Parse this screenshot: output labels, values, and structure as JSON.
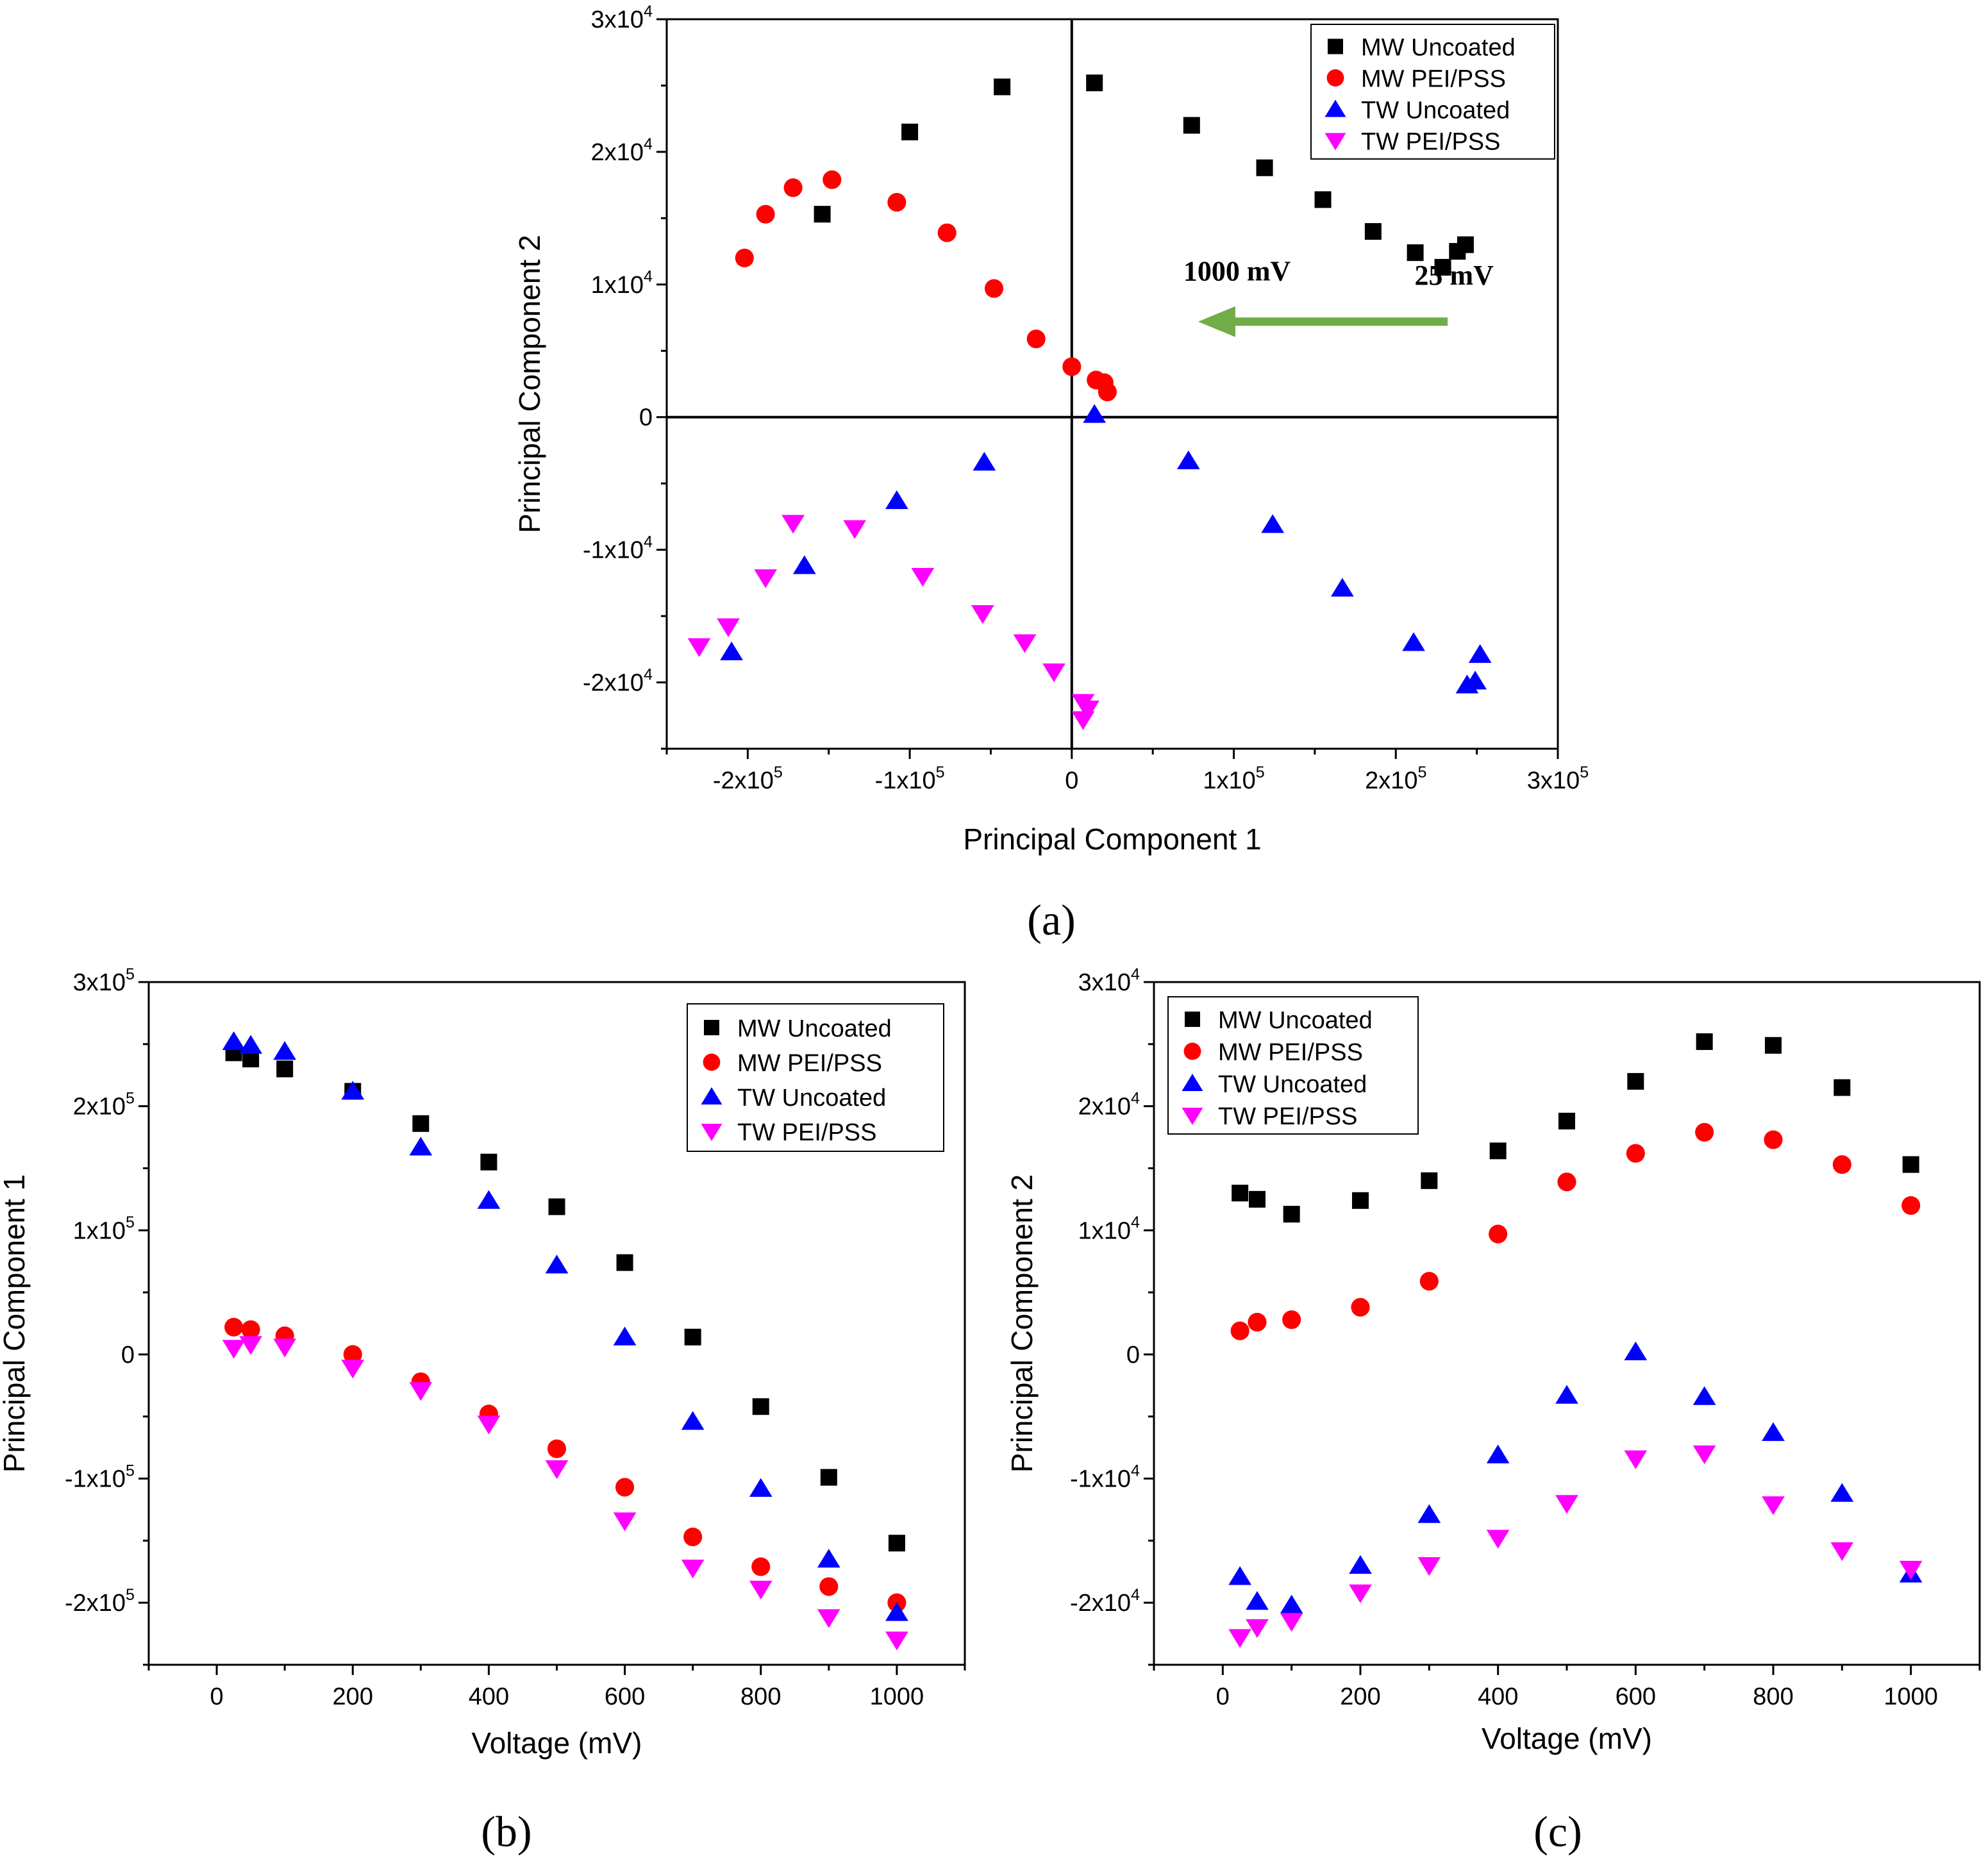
{
  "panel_labels": {
    "a": "(a)",
    "b": "(b)",
    "c": "(c)"
  },
  "legend_labels": [
    "MW Uncoated",
    "MW PEI/PSS",
    "TW Uncoated",
    "TW PEI/PSS"
  ],
  "series_colors": {
    "mw_uncoated": "#000000",
    "mw_peipss": "#ff0000",
    "tw_uncoated": "#0000ff",
    "tw_peipss": "#ff00ff"
  },
  "chart_data": [
    {
      "id": "a",
      "type": "scatter",
      "title": "",
      "xlabel": "Principal Component 1",
      "ylabel": "Principal Component 2",
      "xlim": [
        -250000,
        300000
      ],
      "ylim": [
        -25000,
        30000
      ],
      "xticks": [
        {
          "value": -200000,
          "mant": "-2x10",
          "exp": "5"
        },
        {
          "value": -100000,
          "mant": "-1x10",
          "exp": "5"
        },
        {
          "value": 0,
          "mant": "0",
          "exp": ""
        },
        {
          "value": 100000,
          "mant": "1x10",
          "exp": "5"
        },
        {
          "value": 200000,
          "mant": "2x10",
          "exp": "5"
        },
        {
          "value": 300000,
          "mant": "3x10",
          "exp": "5"
        }
      ],
      "yticks": [
        {
          "value": -20000,
          "mant": "-2x10",
          "exp": "4"
        },
        {
          "value": -10000,
          "mant": "-1x10",
          "exp": "4"
        },
        {
          "value": 0,
          "mant": "0",
          "exp": ""
        },
        {
          "value": 10000,
          "mant": "1x10",
          "exp": "4"
        },
        {
          "value": 20000,
          "mant": "2x10",
          "exp": "4"
        },
        {
          "value": 30000,
          "mant": "3x10",
          "exp": "4"
        }
      ],
      "annotations": [
        {
          "text": "1000 mV",
          "x": 102000,
          "y": 10300
        },
        {
          "text": "25 mV",
          "x": 236000,
          "y": 10000
        }
      ],
      "arrow": {
        "from": [
          232000,
          7200
        ],
        "to": [
          78000,
          7200
        ],
        "color": "#70ad47"
      },
      "series": [
        {
          "name": "MW Uncoated",
          "key": "mw_uncoated",
          "marker": "square",
          "points": [
            [
              243000,
              13000
            ],
            [
              238000,
              12500
            ],
            [
              229000,
              11300
            ],
            [
              212000,
              12400
            ],
            [
              186000,
              14000
            ],
            [
              155000,
              16400
            ],
            [
              119000,
              18800
            ],
            [
              74000,
              22000
            ],
            [
              14000,
              25200
            ],
            [
              -43000,
              24900
            ],
            [
              -100000,
              21500
            ],
            [
              -154000,
              15300
            ]
          ]
        },
        {
          "name": "MW PEI/PSS",
          "key": "mw_peipss",
          "marker": "circle",
          "points": [
            [
              22000,
              1900
            ],
            [
              20000,
              2600
            ],
            [
              15000,
              2800
            ],
            [
              0,
              3800
            ],
            [
              -22000,
              5900
            ],
            [
              -48000,
              9700
            ],
            [
              -77000,
              13900
            ],
            [
              -108000,
              16200
            ],
            [
              -148000,
              17900
            ],
            [
              -172000,
              17300
            ],
            [
              -189000,
              15300
            ],
            [
              -202000,
              12000
            ]
          ]
        },
        {
          "name": "TW Uncoated",
          "key": "tw_uncoated",
          "marker": "triangle-up",
          "points": [
            [
              252000,
              -17900
            ],
            [
              249000,
              -19900
            ],
            [
              244000,
              -20200
            ],
            [
              211000,
              -17000
            ],
            [
              167000,
              -12900
            ],
            [
              124000,
              -8100
            ],
            [
              72000,
              -3300
            ],
            [
              14000,
              200
            ],
            [
              -54000,
              -3400
            ],
            [
              -108000,
              -6300
            ],
            [
              -165000,
              -11200
            ],
            [
              -210000,
              -17700
            ]
          ]
        },
        {
          "name": "TW PEI/PSS",
          "key": "tw_peipss",
          "marker": "triangle-down",
          "points": [
            [
              7000,
              -22800
            ],
            [
              10000,
              -22000
            ],
            [
              7000,
              -21500
            ],
            [
              -11000,
              -19200
            ],
            [
              -29000,
              -17000
            ],
            [
              -55000,
              -14800
            ],
            [
              -92000,
              -12000
            ],
            [
              -134000,
              -8400
            ],
            [
              -172000,
              -8000
            ],
            [
              -189000,
              -12100
            ],
            [
              -212000,
              -15800
            ],
            [
              -230000,
              -17300
            ]
          ]
        }
      ]
    },
    {
      "id": "b",
      "type": "scatter",
      "title": "",
      "xlabel": "Voltage (mV)",
      "ylabel": "Principal Component 1",
      "xlim": [
        -100,
        1100
      ],
      "ylim": [
        -250000,
        300000
      ],
      "xticks": [
        {
          "value": 0,
          "mant": "0",
          "exp": ""
        },
        {
          "value": 200,
          "mant": "200",
          "exp": ""
        },
        {
          "value": 400,
          "mant": "400",
          "exp": ""
        },
        {
          "value": 600,
          "mant": "600",
          "exp": ""
        },
        {
          "value": 800,
          "mant": "800",
          "exp": ""
        },
        {
          "value": 1000,
          "mant": "1000",
          "exp": ""
        }
      ],
      "yticks": [
        {
          "value": -200000,
          "mant": "-2x10",
          "exp": "5"
        },
        {
          "value": -100000,
          "mant": "-1x10",
          "exp": "5"
        },
        {
          "value": 0,
          "mant": "0",
          "exp": ""
        },
        {
          "value": 100000,
          "mant": "1x10",
          "exp": "5"
        },
        {
          "value": 200000,
          "mant": "2x10",
          "exp": "5"
        },
        {
          "value": 300000,
          "mant": "3x10",
          "exp": "5"
        }
      ],
      "series": [
        {
          "name": "MW Uncoated",
          "key": "mw_uncoated",
          "marker": "square",
          "points": [
            [
              25,
              243000
            ],
            [
              50,
              238000
            ],
            [
              100,
              230000
            ],
            [
              200,
              212000
            ],
            [
              300,
              186000
            ],
            [
              400,
              155000
            ],
            [
              500,
              119000
            ],
            [
              600,
              74000
            ],
            [
              700,
              14000
            ],
            [
              800,
              -42000
            ],
            [
              900,
              -99000
            ],
            [
              1000,
              -152000
            ]
          ]
        },
        {
          "name": "MW PEI/PSS",
          "key": "mw_peipss",
          "marker": "circle",
          "points": [
            [
              25,
              22000
            ],
            [
              50,
              20000
            ],
            [
              100,
              15000
            ],
            [
              200,
              0
            ],
            [
              300,
              -22000
            ],
            [
              400,
              -48000
            ],
            [
              500,
              -76000
            ],
            [
              600,
              -107000
            ],
            [
              700,
              -147000
            ],
            [
              800,
              -171000
            ],
            [
              900,
              -187000
            ],
            [
              1000,
              -200000
            ]
          ]
        },
        {
          "name": "TW Uncoated",
          "key": "tw_uncoated",
          "marker": "triangle-up",
          "points": [
            [
              25,
              252000
            ],
            [
              50,
              249000
            ],
            [
              100,
              244000
            ],
            [
              200,
              212000
            ],
            [
              300,
              167000
            ],
            [
              400,
              124000
            ],
            [
              500,
              72000
            ],
            [
              600,
              14000
            ],
            [
              700,
              -54000
            ],
            [
              800,
              -108000
            ],
            [
              900,
              -165000
            ],
            [
              1000,
              -208000
            ]
          ]
        },
        {
          "name": "TW PEI/PSS",
          "key": "tw_peipss",
          "marker": "triangle-down",
          "points": [
            [
              25,
              5000
            ],
            [
              50,
              8000
            ],
            [
              100,
              6000
            ],
            [
              200,
              -11000
            ],
            [
              300,
              -29000
            ],
            [
              400,
              -56000
            ],
            [
              500,
              -92000
            ],
            [
              600,
              -134000
            ],
            [
              700,
              -172000
            ],
            [
              800,
              -189000
            ],
            [
              900,
              -212000
            ],
            [
              1000,
              -230000
            ]
          ]
        }
      ]
    },
    {
      "id": "c",
      "type": "scatter",
      "title": "",
      "xlabel": "Voltage (mV)",
      "ylabel": "Principal Component 2",
      "xlim": [
        -100,
        1100
      ],
      "ylim": [
        -25000,
        30000
      ],
      "xticks": [
        {
          "value": 0,
          "mant": "0",
          "exp": ""
        },
        {
          "value": 200,
          "mant": "200",
          "exp": ""
        },
        {
          "value": 400,
          "mant": "400",
          "exp": ""
        },
        {
          "value": 600,
          "mant": "600",
          "exp": ""
        },
        {
          "value": 800,
          "mant": "800",
          "exp": ""
        },
        {
          "value": 1000,
          "mant": "1000",
          "exp": ""
        }
      ],
      "yticks": [
        {
          "value": -20000,
          "mant": "-2x10",
          "exp": "4"
        },
        {
          "value": -10000,
          "mant": "-1x10",
          "exp": "4"
        },
        {
          "value": 0,
          "mant": "0",
          "exp": ""
        },
        {
          "value": 10000,
          "mant": "1x10",
          "exp": "4"
        },
        {
          "value": 20000,
          "mant": "2x10",
          "exp": "4"
        },
        {
          "value": 30000,
          "mant": "3x10",
          "exp": "4"
        }
      ],
      "series": [
        {
          "name": "MW Uncoated",
          "key": "mw_uncoated",
          "marker": "square",
          "points": [
            [
              25,
              13000
            ],
            [
              50,
              12500
            ],
            [
              100,
              11300
            ],
            [
              200,
              12400
            ],
            [
              300,
              14000
            ],
            [
              400,
              16400
            ],
            [
              500,
              18800
            ],
            [
              600,
              22000
            ],
            [
              700,
              25200
            ],
            [
              800,
              24900
            ],
            [
              900,
              21500
            ],
            [
              1000,
              15300
            ]
          ]
        },
        {
          "name": "MW PEI/PSS",
          "key": "mw_peipss",
          "marker": "circle",
          "points": [
            [
              25,
              1900
            ],
            [
              50,
              2600
            ],
            [
              100,
              2800
            ],
            [
              200,
              3800
            ],
            [
              300,
              5900
            ],
            [
              400,
              9700
            ],
            [
              500,
              13900
            ],
            [
              600,
              16200
            ],
            [
              700,
              17900
            ],
            [
              800,
              17300
            ],
            [
              900,
              15300
            ],
            [
              1000,
              12000
            ]
          ]
        },
        {
          "name": "TW Uncoated",
          "key": "tw_uncoated",
          "marker": "triangle-up",
          "points": [
            [
              25,
              -17900
            ],
            [
              50,
              -19900
            ],
            [
              100,
              -20200
            ],
            [
              200,
              -17000
            ],
            [
              300,
              -12900
            ],
            [
              400,
              -8100
            ],
            [
              500,
              -3300
            ],
            [
              600,
              200
            ],
            [
              700,
              -3400
            ],
            [
              800,
              -6300
            ],
            [
              900,
              -11200
            ],
            [
              1000,
              -17700
            ]
          ]
        },
        {
          "name": "TW PEI/PSS",
          "key": "tw_peipss",
          "marker": "triangle-down",
          "points": [
            [
              25,
              -22800
            ],
            [
              50,
              -22000
            ],
            [
              100,
              -21500
            ],
            [
              200,
              -19200
            ],
            [
              300,
              -17000
            ],
            [
              400,
              -14800
            ],
            [
              500,
              -12000
            ],
            [
              600,
              -8400
            ],
            [
              700,
              -8000
            ],
            [
              800,
              -12100
            ],
            [
              900,
              -15800
            ],
            [
              1000,
              -17300
            ]
          ]
        }
      ]
    }
  ]
}
